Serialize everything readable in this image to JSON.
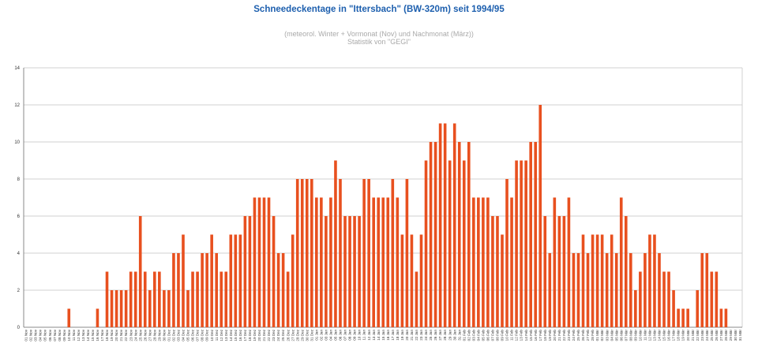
{
  "chart_data": {
    "type": "bar",
    "title": "Schneedeckentage in \"Ittersbach\" (BW-320m) seit 1994/95",
    "subtitle_lines": [
      "(meteorol. Winter + Vormonat (Nov) und Nachmonat (März))",
      "Statistik von \"GEGI\""
    ],
    "xlabel": "",
    "ylabel": "",
    "ylim": [
      0,
      14
    ],
    "yticks": [
      0,
      2,
      4,
      6,
      8,
      10,
      12,
      14
    ],
    "grid": true,
    "legend": "none",
    "colors": {
      "bar": "#e8501f",
      "grid": "#d0d0d0",
      "title": "#1d5fae"
    },
    "categories": [
      "01 Nov",
      "02 Nov",
      "03 Nov",
      "04 Nov",
      "05 Nov",
      "06 Nov",
      "07 Nov",
      "08 Nov",
      "09 Nov",
      "10 Nov",
      "11 Nov",
      "12 Nov",
      "13 Nov",
      "14 Nov",
      "15 Nov",
      "16 Nov",
      "17 Nov",
      "18 Nov",
      "19 Nov",
      "20 Nov",
      "21 Nov",
      "22 Nov",
      "23 Nov",
      "24 Nov",
      "25 Nov",
      "26 Nov",
      "27 Nov",
      "28 Nov",
      "29 Nov",
      "30 Nov",
      "01 Dez",
      "02 Dez",
      "03 Dez",
      "04 Dez",
      "05 Dez",
      "06 Dez",
      "07 Dez",
      "08 Dez",
      "09 Dez",
      "10 Dez",
      "11 Dez",
      "12 Dez",
      "13 Dez",
      "14 Dez",
      "15 Dez",
      "16 Dez",
      "17 Dez",
      "18 Dez",
      "19 Dez",
      "20 Dez",
      "21 Dez",
      "22 Dez",
      "23 Dez",
      "24 Dez",
      "25 Dez",
      "26 Dez",
      "27 Dez",
      "28 Dez",
      "29 Dez",
      "30 Dez",
      "31 Dez",
      "01 Jan",
      "02 Jan",
      "03 Jan",
      "04 Jan",
      "05 Jan",
      "06 Jan",
      "07 Jan",
      "08 Jan",
      "09 Jan",
      "10 Jan",
      "11 Jan",
      "12 Jan",
      "13 Jan",
      "14 Jan",
      "15 Jan",
      "16 Jan",
      "17 Jan",
      "18 Jan",
      "19 Jan",
      "20 Jan",
      "21 Jan",
      "22 Jan",
      "23 Jan",
      "24 Jan",
      "25 Jan",
      "26 Jan",
      "27 Jan",
      "28 Jan",
      "29 Jan",
      "30 Jan",
      "31 Jan",
      "01 Feb",
      "02 Feb",
      "03 Feb",
      "04 Feb",
      "05 Feb",
      "06 Feb",
      "07 Feb",
      "08 Feb",
      "09 Feb",
      "10 Feb",
      "11 Feb",
      "12 Feb",
      "13 Feb",
      "14 Feb",
      "15 Feb",
      "16 Feb",
      "17 Feb",
      "18 Feb",
      "19 Feb",
      "20 Feb",
      "21 Feb",
      "22 Feb",
      "23 Feb",
      "24 Feb",
      "25 Feb",
      "26 Feb",
      "27 Feb",
      "28 Feb",
      "01 Mär",
      "02 Mär",
      "03 Mär",
      "04 Mär",
      "05 Mär",
      "06 Mär",
      "07 Mär",
      "08 Mär",
      "09 Mär",
      "10 Mär",
      "11 Mär",
      "12 Mär",
      "13 Mär",
      "14 Mär",
      "15 Mär",
      "16 Mär",
      "17 Mär",
      "18 Mär",
      "19 Mär",
      "20 Mär",
      "21 Mär",
      "22 Mär",
      "23 Mär",
      "24 Mär",
      "25 Mär",
      "26 Mär",
      "27 Mär",
      "28 Mär",
      "29 Mär",
      "30 Mär",
      "31 Mär"
    ],
    "values": [
      0,
      0,
      0,
      0,
      0,
      0,
      0,
      0,
      0,
      1,
      0,
      0,
      0,
      0,
      0,
      1,
      0,
      3,
      2,
      2,
      2,
      2,
      3,
      3,
      6,
      3,
      2,
      3,
      3,
      2,
      2,
      4,
      4,
      5,
      2,
      3,
      3,
      4,
      4,
      5,
      4,
      3,
      3,
      5,
      5,
      5,
      6,
      6,
      7,
      7,
      7,
      7,
      6,
      4,
      4,
      3,
      5,
      8,
      8,
      8,
      8,
      7,
      7,
      6,
      7,
      9,
      8,
      6,
      6,
      6,
      6,
      8,
      8,
      7,
      7,
      7,
      7,
      8,
      7,
      5,
      8,
      5,
      3,
      5,
      9,
      10,
      10,
      11,
      11,
      9,
      11,
      10,
      9,
      10,
      7,
      7,
      7,
      7,
      6,
      6,
      5,
      8,
      7,
      9,
      9,
      9,
      10,
      10,
      12,
      6,
      4,
      7,
      6,
      6,
      7,
      4,
      4,
      5,
      4,
      5,
      5,
      5,
      4,
      5,
      4,
      7,
      6,
      4,
      2,
      3,
      4,
      5,
      5,
      4,
      3,
      3,
      2,
      1,
      1,
      1,
      0,
      2,
      4,
      4,
      3,
      3,
      1,
      1,
      0,
      0,
      0
    ]
  }
}
